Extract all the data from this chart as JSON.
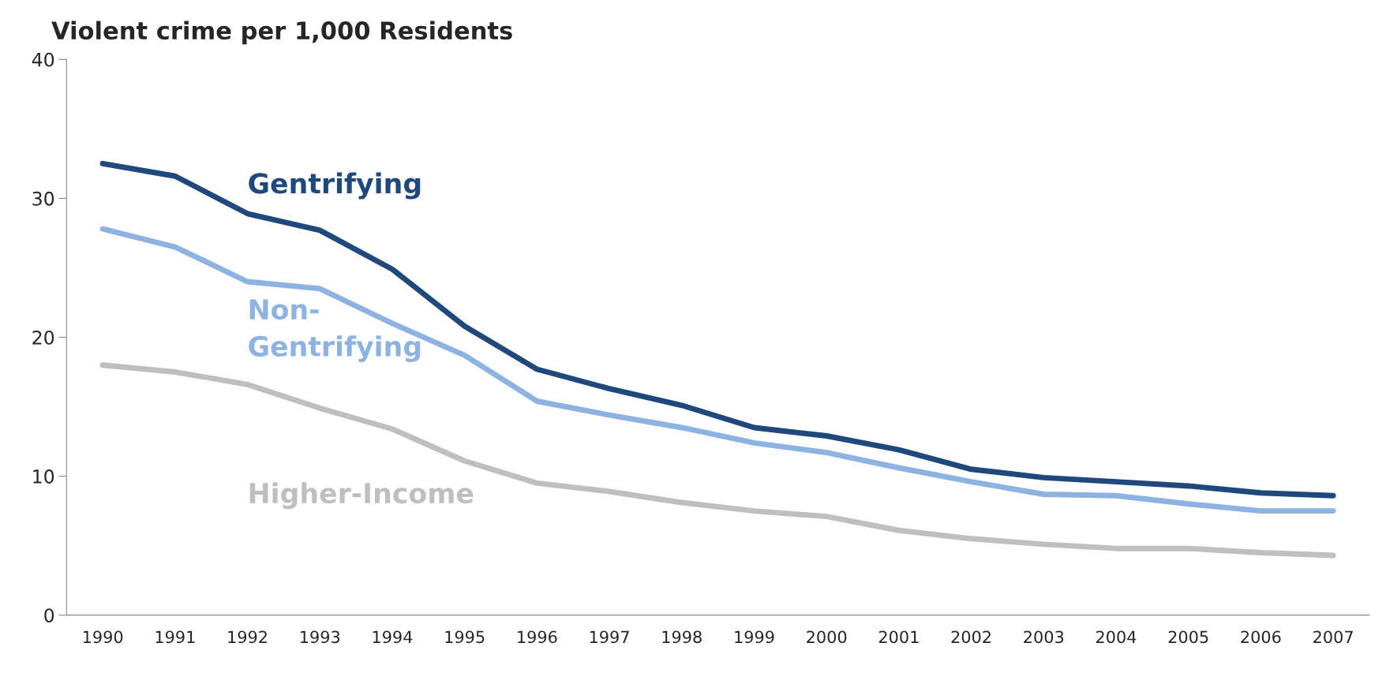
{
  "chart_data": {
    "type": "line",
    "title": "Violent crime per 1,000 Residents",
    "categories": [
      "1990",
      "1991",
      "1992",
      "1993",
      "1994",
      "1995",
      "1996",
      "1997",
      "1998",
      "1999",
      "2000",
      "2001",
      "2002",
      "2003",
      "2004",
      "2005",
      "2006",
      "2007"
    ],
    "series": [
      {
        "name": "Gentrifying",
        "color": "#1f497d",
        "values": [
          32.5,
          31.6,
          28.9,
          27.7,
          24.9,
          20.8,
          17.7,
          16.3,
          15.1,
          13.5,
          12.9,
          11.9,
          10.5,
          9.9,
          9.6,
          9.3,
          8.8,
          8.6
        ]
      },
      {
        "name": "Non-\nGentrifying",
        "color": "#8db3e2",
        "values": [
          27.8,
          26.5,
          24.0,
          23.5,
          21.0,
          18.7,
          15.4,
          14.4,
          13.5,
          12.4,
          11.7,
          10.6,
          9.6,
          8.7,
          8.6,
          8.0,
          7.5,
          7.5
        ]
      },
      {
        "name": "Higher-Income",
        "color": "#bfbfbf",
        "values": [
          18.0,
          17.5,
          16.6,
          14.9,
          13.4,
          11.1,
          9.5,
          8.9,
          8.1,
          7.5,
          7.1,
          6.1,
          5.5,
          5.1,
          4.8,
          4.8,
          4.5,
          4.3
        ]
      }
    ],
    "ylim": [
      0,
      40
    ],
    "yticks": [
      0,
      10,
      20,
      30,
      40
    ],
    "grid": false,
    "legend": false,
    "marker": "none",
    "line_style": "solid"
  }
}
